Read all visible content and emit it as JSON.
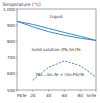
{
  "chart_data": {
    "type": "line",
    "y_label": "Temperature (°C)",
    "annotations": [
      "Liquid",
      "Solid solution (Pb,Sn)Te",
      "Pb₁₋ₓSnₓTe + (Sn,Pb)Te"
    ],
    "x": [
      0,
      20,
      40,
      60,
      80,
      100
    ],
    "xlim": [
      0,
      100
    ],
    "xticks": [
      {
        "value": 0,
        "label": "PbTe"
      },
      20,
      40,
      60,
      80,
      {
        "value": 100,
        "label": "SnTe"
      }
    ],
    "ylim": [
      500,
      1000
    ],
    "yticks": [
      500,
      600,
      700,
      800,
      900,
      {
        "value": 1000,
        "label": "1,000"
      }
    ],
    "grid": false,
    "series": [
      {
        "color": "#2a7ab8",
        "line_style": "solid",
        "values": [
          924,
          905,
          880,
          855,
          832,
          806
        ]
      },
      {
        "color": "#2a7ab8",
        "line_style": "solid",
        "values": [
          924,
          890,
          860,
          838,
          820,
          806
        ]
      },
      {
        "color": "#2a7ab8",
        "line_style": "dashed",
        "values": [
          null,
          560,
          640,
          680,
          650,
          580
        ]
      }
    ]
  }
}
